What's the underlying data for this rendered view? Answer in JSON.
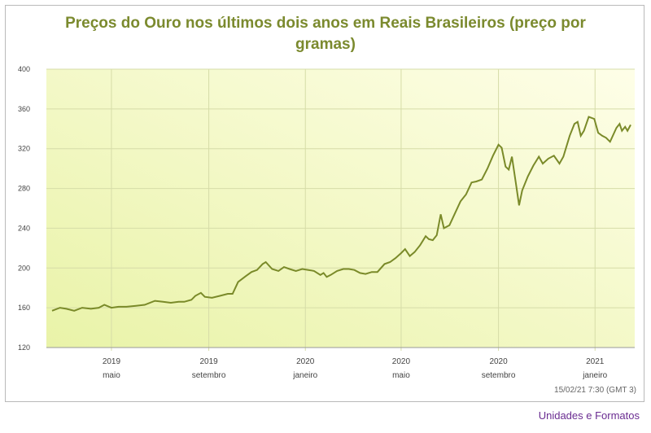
{
  "chart_data": {
    "type": "line",
    "title_line1": "Preços do Ouro nos últimos dois anos em Reais Brasileiros (preço por",
    "title_line2": "gramas)",
    "ylim": [
      120,
      400
    ],
    "yticks": [
      120,
      160,
      200,
      240,
      280,
      320,
      360,
      400
    ],
    "xticks": [
      {
        "year": "2019",
        "month": "maio"
      },
      {
        "year": "2019",
        "month": "setembro"
      },
      {
        "year": "2020",
        "month": "janeiro"
      },
      {
        "year": "2020",
        "month": "maio"
      },
      {
        "year": "2020",
        "month": "setembro"
      },
      {
        "year": "2021",
        "month": "janeiro"
      }
    ],
    "x_domain": [
      "2019-02-15",
      "2021-02-15"
    ],
    "series": [
      {
        "points": [
          [
            "2019-02-15",
            157
          ],
          [
            "2019-02-25",
            160
          ],
          [
            "2019-03-05",
            159
          ],
          [
            "2019-03-15",
            157
          ],
          [
            "2019-03-25",
            160
          ],
          [
            "2019-04-05",
            159
          ],
          [
            "2019-04-15",
            160
          ],
          [
            "2019-04-22",
            163
          ],
          [
            "2019-05-01",
            160
          ],
          [
            "2019-05-10",
            161
          ],
          [
            "2019-05-20",
            161
          ],
          [
            "2019-06-01",
            162
          ],
          [
            "2019-06-12",
            163
          ],
          [
            "2019-06-25",
            167
          ],
          [
            "2019-07-05",
            166
          ],
          [
            "2019-07-15",
            165
          ],
          [
            "2019-07-25",
            166
          ],
          [
            "2019-08-01",
            166
          ],
          [
            "2019-08-10",
            168
          ],
          [
            "2019-08-15",
            172
          ],
          [
            "2019-08-22",
            175
          ],
          [
            "2019-08-27",
            171
          ],
          [
            "2019-09-05",
            170
          ],
          [
            "2019-09-15",
            172
          ],
          [
            "2019-09-25",
            174
          ],
          [
            "2019-10-01",
            174
          ],
          [
            "2019-10-08",
            186
          ],
          [
            "2019-10-18",
            192
          ],
          [
            "2019-10-25",
            196
          ],
          [
            "2019-11-01",
            198
          ],
          [
            "2019-11-08",
            204
          ],
          [
            "2019-11-12",
            206
          ],
          [
            "2019-11-20",
            199
          ],
          [
            "2019-11-28",
            197
          ],
          [
            "2019-12-05",
            201
          ],
          [
            "2019-12-12",
            199
          ],
          [
            "2019-12-20",
            197
          ],
          [
            "2019-12-28",
            199
          ],
          [
            "2020-01-05",
            198
          ],
          [
            "2020-01-12",
            197
          ],
          [
            "2020-01-20",
            193
          ],
          [
            "2020-01-24",
            195
          ],
          [
            "2020-01-28",
            191
          ],
          [
            "2020-02-02",
            193
          ],
          [
            "2020-02-10",
            197
          ],
          [
            "2020-02-18",
            199
          ],
          [
            "2020-02-25",
            199
          ],
          [
            "2020-03-03",
            198
          ],
          [
            "2020-03-10",
            195
          ],
          [
            "2020-03-17",
            194
          ],
          [
            "2020-03-25",
            196
          ],
          [
            "2020-04-01",
            196
          ],
          [
            "2020-04-10",
            204
          ],
          [
            "2020-04-17",
            206
          ],
          [
            "2020-04-24",
            210
          ],
          [
            "2020-05-01",
            215
          ],
          [
            "2020-05-06",
            219
          ],
          [
            "2020-05-12",
            212
          ],
          [
            "2020-05-18",
            216
          ],
          [
            "2020-05-25",
            223
          ],
          [
            "2020-06-01",
            232
          ],
          [
            "2020-06-05",
            229
          ],
          [
            "2020-06-10",
            228
          ],
          [
            "2020-06-15",
            233
          ],
          [
            "2020-06-20",
            254
          ],
          [
            "2020-06-24",
            240
          ],
          [
            "2020-07-01",
            243
          ],
          [
            "2020-07-08",
            255
          ],
          [
            "2020-07-15",
            267
          ],
          [
            "2020-07-22",
            274
          ],
          [
            "2020-07-29",
            286
          ],
          [
            "2020-08-04",
            287
          ],
          [
            "2020-08-11",
            289
          ],
          [
            "2020-08-18",
            300
          ],
          [
            "2020-08-25",
            313
          ],
          [
            "2020-09-01",
            324
          ],
          [
            "2020-09-05",
            321
          ],
          [
            "2020-09-10",
            302
          ],
          [
            "2020-09-14",
            299
          ],
          [
            "2020-09-18",
            312
          ],
          [
            "2020-09-23",
            285
          ],
          [
            "2020-09-27",
            263
          ],
          [
            "2020-10-01",
            278
          ],
          [
            "2020-10-08",
            292
          ],
          [
            "2020-10-15",
            303
          ],
          [
            "2020-10-22",
            312
          ],
          [
            "2020-10-27",
            305
          ],
          [
            "2020-11-03",
            310
          ],
          [
            "2020-11-10",
            313
          ],
          [
            "2020-11-17",
            305
          ],
          [
            "2020-11-22",
            312
          ],
          [
            "2020-11-30",
            333
          ],
          [
            "2020-12-06",
            345
          ],
          [
            "2020-12-10",
            347
          ],
          [
            "2020-12-14",
            333
          ],
          [
            "2020-12-18",
            338
          ],
          [
            "2020-12-24",
            352
          ],
          [
            "2020-12-31",
            350
          ],
          [
            "2021-01-05",
            336
          ],
          [
            "2021-01-10",
            333
          ],
          [
            "2021-01-15",
            331
          ],
          [
            "2021-01-20",
            327
          ],
          [
            "2021-01-28",
            341
          ],
          [
            "2021-02-01",
            345
          ],
          [
            "2021-02-04",
            338
          ],
          [
            "2021-02-08",
            342
          ],
          [
            "2021-02-11",
            338
          ],
          [
            "2021-02-15",
            344
          ]
        ]
      }
    ],
    "grid": true,
    "plot_bg_gradient": [
      "#e9f3a8",
      "#fefee8"
    ],
    "line_color": "#7a8a29"
  },
  "timestamp": "15/02/21 7:30 (GMT 3)",
  "footer_link": "Unidades e Formatos"
}
